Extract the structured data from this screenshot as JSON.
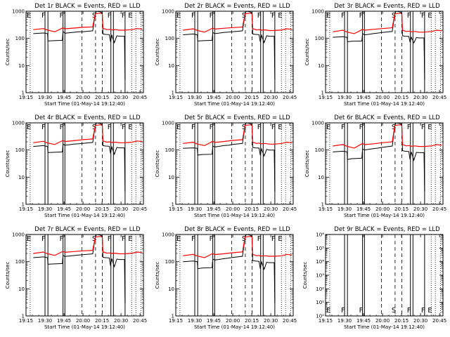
{
  "figure": {
    "x_ticks": [
      "19:15",
      "19:30",
      "19:45",
      "20:00",
      "20:15",
      "20:30",
      "20:45"
    ],
    "x_label": "Start Time (01-May-14 19:12:40)",
    "y_label": "Counts/sec",
    "colors": {
      "events": "#000000",
      "lld": "#ff0000"
    },
    "flag_lines": [
      {
        "t": 5.6,
        "label": "E",
        "style": "dotted"
      },
      {
        "t": 17.3,
        "label": "F",
        "style": "solid"
      },
      {
        "t": 19.6,
        "label": "",
        "style": "solid"
      },
      {
        "t": 31.5,
        "label": "F",
        "style": "solid"
      },
      {
        "t": 33.0,
        "label": "",
        "style": "solid"
      },
      {
        "t": 46.5,
        "label": "",
        "style": "dashed"
      },
      {
        "t": 57.2,
        "label": "S",
        "style": "dashed"
      },
      {
        "t": 62.5,
        "label": "",
        "style": "dashed"
      },
      {
        "t": 69.3,
        "label": "F",
        "style": "solid"
      },
      {
        "t": 71.3,
        "label": "",
        "style": "solid"
      },
      {
        "t": 80.5,
        "label": "F",
        "style": "solid"
      },
      {
        "t": 85.7,
        "label": "E",
        "style": "dotted"
      },
      {
        "t": 89.0,
        "label": "",
        "style": "dotted"
      },
      {
        "t": 93.0,
        "label": "",
        "style": "dotted"
      }
    ]
  },
  "chart_data": [
    {
      "type": "line",
      "title": "Det 1r BLACK = Events, RED = LLD",
      "yscale": "log",
      "ylim": [
        1,
        1000
      ],
      "xlim": [
        2.3,
        95
      ],
      "series": [
        {
          "x": [
            8,
            16,
            17.5,
            19.3,
            19.6,
            23,
            31,
            31.5,
            33,
            36,
            40,
            44,
            47,
            55,
            57,
            58,
            61,
            62.5,
            63,
            65,
            68,
            69,
            70,
            72,
            74,
            76,
            80,
            80.5
          ],
          "y": [
            150,
            158,
            155,
            150,
            80,
            82,
            85,
            180,
            155,
            160,
            168,
            175,
            175,
            190,
            800,
            1000,
            950,
            850,
            145,
            140,
            138,
            75,
            130,
            70,
            125,
            120,
            120,
            3
          ]
        },
        {
          "x": [
            8,
            16,
            17.5,
            19.6,
            25,
            31.5,
            33,
            40,
            47,
            55,
            57,
            61,
            62.5,
            63,
            66,
            68,
            70,
            73,
            76,
            80,
            86,
            90,
            94
          ],
          "y": [
            210,
            230,
            215,
            200,
            175,
            245,
            225,
            240,
            255,
            265,
            800,
            850,
            800,
            235,
            210,
            215,
            205,
            210,
            200,
            200,
            210,
            230,
            220
          ]
        }
      ]
    },
    {
      "type": "line",
      "title": "Det 2r BLACK = Events, RED = LLD",
      "yscale": "log",
      "ylim": [
        1,
        1000
      ],
      "xlim": [
        2.3,
        95
      ],
      "series": [
        {
          "x": [
            8,
            16,
            17.5,
            19.3,
            19.6,
            23,
            31,
            31.5,
            33,
            36,
            40,
            44,
            47,
            55,
            57,
            58,
            61,
            62.5,
            63,
            65,
            68,
            69,
            70,
            72,
            74,
            76,
            80,
            80.5
          ],
          "y": [
            135,
            145,
            140,
            135,
            80,
            82,
            85,
            165,
            150,
            155,
            165,
            170,
            175,
            190,
            800,
            1000,
            950,
            850,
            145,
            140,
            138,
            75,
            130,
            70,
            125,
            120,
            120,
            3
          ]
        },
        {
          "x": [
            8,
            16,
            17.5,
            19.6,
            25,
            31.5,
            33,
            40,
            47,
            55,
            57,
            61,
            62.5,
            63,
            66,
            68,
            70,
            73,
            76,
            80,
            86,
            90,
            94
          ],
          "y": [
            200,
            225,
            210,
            195,
            170,
            240,
            220,
            235,
            250,
            260,
            800,
            850,
            800,
            230,
            205,
            210,
            200,
            205,
            195,
            195,
            205,
            225,
            215
          ]
        }
      ]
    },
    {
      "type": "line",
      "title": "Det 3r BLACK = Events, RED = LLD",
      "yscale": "log",
      "ylim": [
        1,
        1000
      ],
      "xlim": [
        2.3,
        95
      ],
      "series": [
        {
          "x": [
            8,
            16,
            17.5,
            19.3,
            19.6,
            23,
            31,
            31.5,
            33,
            36,
            40,
            44,
            47,
            55,
            57,
            58,
            61,
            62.5,
            63,
            65,
            68,
            69,
            70,
            72,
            74,
            76,
            80,
            80.5
          ],
          "y": [
            110,
            115,
            112,
            110,
            75,
            78,
            80,
            150,
            135,
            140,
            150,
            158,
            165,
            180,
            800,
            1000,
            950,
            850,
            125,
            120,
            118,
            72,
            110,
            68,
            108,
            104,
            104,
            3
          ]
        },
        {
          "x": [
            8,
            16,
            17.5,
            19.6,
            25,
            31.5,
            33,
            40,
            47,
            55,
            57,
            61,
            62.5,
            63,
            66,
            68,
            70,
            73,
            76,
            80,
            86,
            90,
            94
          ],
          "y": [
            175,
            200,
            185,
            170,
            150,
            215,
            200,
            215,
            230,
            245,
            800,
            850,
            800,
            200,
            180,
            185,
            175,
            180,
            170,
            170,
            180,
            200,
            190
          ]
        }
      ]
    },
    {
      "type": "line",
      "title": "Det 4r BLACK = Events, RED = LLD",
      "yscale": "log",
      "ylim": [
        1,
        1000
      ],
      "xlim": [
        2.3,
        95
      ],
      "series": [
        {
          "x": [
            8,
            16,
            17.5,
            19.3,
            19.6,
            23,
            31,
            31.5,
            33,
            36,
            40,
            44,
            47,
            55,
            57,
            58,
            61,
            62.5,
            63,
            65,
            68,
            69,
            70,
            72,
            74,
            76,
            80,
            80.5
          ],
          "y": [
            135,
            145,
            140,
            135,
            80,
            82,
            85,
            165,
            150,
            155,
            165,
            170,
            175,
            190,
            800,
            1000,
            950,
            850,
            145,
            140,
            138,
            75,
            130,
            70,
            125,
            120,
            120,
            3
          ]
        },
        {
          "x": [
            8,
            16,
            17.5,
            19.6,
            25,
            31.5,
            33,
            40,
            47,
            55,
            57,
            61,
            62.5,
            63,
            66,
            68,
            70,
            73,
            76,
            80,
            86,
            90,
            94
          ],
          "y": [
            185,
            210,
            195,
            180,
            160,
            225,
            205,
            220,
            240,
            255,
            800,
            850,
            800,
            215,
            195,
            200,
            190,
            195,
            185,
            185,
            195,
            215,
            205
          ]
        }
      ]
    },
    {
      "type": "line",
      "title": "Det 5r BLACK = Events, RED = LLD",
      "yscale": "log",
      "ylim": [
        1,
        1000
      ],
      "xlim": [
        2.3,
        95
      ],
      "series": [
        {
          "x": [
            8,
            16,
            17.5,
            19.3,
            19.6,
            23,
            31,
            31.5,
            33,
            36,
            40,
            44,
            47,
            55,
            57,
            58,
            61,
            62.5,
            63,
            65,
            68,
            69,
            70,
            72,
            74,
            76,
            80,
            80.5
          ],
          "y": [
            115,
            120,
            118,
            115,
            65,
            68,
            70,
            140,
            130,
            135,
            145,
            150,
            160,
            175,
            800,
            1000,
            950,
            850,
            125,
            120,
            118,
            65,
            110,
            60,
            105,
            100,
            100,
            3
          ]
        },
        {
          "x": [
            8,
            16,
            17.5,
            19.6,
            25,
            31.5,
            33,
            40,
            47,
            55,
            57,
            61,
            62.5,
            63,
            66,
            68,
            70,
            73,
            76,
            80,
            86,
            90,
            94
          ],
          "y": [
            175,
            195,
            180,
            165,
            145,
            210,
            190,
            205,
            225,
            240,
            800,
            850,
            800,
            195,
            175,
            180,
            170,
            175,
            165,
            165,
            175,
            195,
            185
          ]
        }
      ]
    },
    {
      "type": "line",
      "title": "Det 6r BLACK = Events, RED = LLD",
      "yscale": "log",
      "ylim": [
        1,
        1000
      ],
      "xlim": [
        2.3,
        95
      ],
      "series": [
        {
          "x": [
            8,
            16,
            17.5,
            19.3,
            19.6,
            23,
            31,
            31.5,
            33,
            36,
            40,
            44,
            47,
            55,
            57,
            58,
            61,
            62.5,
            63,
            65,
            68,
            69,
            70,
            72,
            74,
            76,
            80,
            80.5
          ],
          "y": [
            85,
            90,
            88,
            85,
            45,
            48,
            50,
            110,
            100,
            105,
            112,
            118,
            125,
            140,
            800,
            1000,
            950,
            850,
            95,
            90,
            88,
            45,
            85,
            42,
            82,
            80,
            80,
            3
          ]
        },
        {
          "x": [
            8,
            16,
            17.5,
            19.6,
            25,
            31.5,
            33,
            40,
            47,
            55,
            57,
            61,
            62.5,
            63,
            66,
            68,
            70,
            73,
            76,
            80,
            86,
            90,
            94
          ],
          "y": [
            140,
            160,
            148,
            135,
            118,
            175,
            158,
            170,
            185,
            200,
            800,
            850,
            800,
            160,
            142,
            146,
            138,
            142,
            135,
            135,
            142,
            158,
            150
          ]
        }
      ]
    },
    {
      "type": "line",
      "title": "Det 7r BLACK = Events, RED = LLD",
      "yscale": "log",
      "ylim": [
        1,
        1000
      ],
      "xlim": [
        2.3,
        95
      ],
      "series": [
        {
          "x": [
            8,
            16,
            17.5,
            19.3,
            19.6,
            23,
            31,
            31.5,
            33,
            36,
            40,
            44,
            47,
            55,
            57,
            58,
            61,
            62.5,
            63,
            65,
            68,
            69,
            70,
            72,
            74,
            76,
            80,
            80.5
          ],
          "y": [
            140,
            150,
            145,
            140,
            80,
            82,
            85,
            170,
            155,
            160,
            168,
            175,
            180,
            195,
            800,
            1000,
            950,
            850,
            145,
            140,
            138,
            70,
            130,
            65,
            125,
            120,
            120,
            3
          ]
        },
        {
          "x": [
            8,
            16,
            17.5,
            19.6,
            25,
            31.5,
            33,
            40,
            47,
            55,
            57,
            61,
            62.5,
            63,
            66,
            68,
            70,
            73,
            76,
            80,
            86,
            90,
            94
          ],
          "y": [
            200,
            225,
            210,
            195,
            170,
            240,
            220,
            235,
            250,
            260,
            800,
            850,
            800,
            230,
            205,
            210,
            200,
            205,
            195,
            195,
            205,
            225,
            215
          ]
        }
      ]
    },
    {
      "type": "line",
      "title": "Det 8r BLACK = Events, RED = LLD",
      "yscale": "log",
      "ylim": [
        1,
        1000
      ],
      "xlim": [
        2.3,
        95
      ],
      "series": [
        {
          "x": [
            8,
            16,
            17.5,
            19.3,
            19.6,
            23,
            31,
            31.5,
            33,
            36,
            40,
            44,
            47,
            55,
            57,
            58,
            61,
            62.5,
            63,
            65,
            68,
            69,
            70,
            72,
            74,
            76,
            80,
            80.5
          ],
          "y": [
            100,
            105,
            102,
            100,
            55,
            58,
            60,
            125,
            115,
            120,
            128,
            135,
            142,
            158,
            800,
            1000,
            950,
            850,
            110,
            105,
            102,
            55,
            98,
            52,
            95,
            92,
            92,
            3
          ]
        },
        {
          "x": [
            8,
            16,
            17.5,
            19.6,
            25,
            31.5,
            33,
            40,
            47,
            55,
            57,
            61,
            62.5,
            63,
            66,
            68,
            70,
            73,
            76,
            80,
            86,
            90,
            94
          ],
          "y": [
            165,
            185,
            172,
            160,
            140,
            200,
            182,
            195,
            212,
            228,
            800,
            850,
            800,
            185,
            165,
            170,
            160,
            165,
            158,
            158,
            165,
            185,
            175
          ]
        }
      ]
    },
    {
      "type": "line",
      "title": "Det 9r BLACK = Events, RED = LLD",
      "yscale": "log",
      "ylim": [
        1,
        1000000
      ],
      "xlim": [
        2.3,
        95
      ],
      "series": []
    }
  ]
}
